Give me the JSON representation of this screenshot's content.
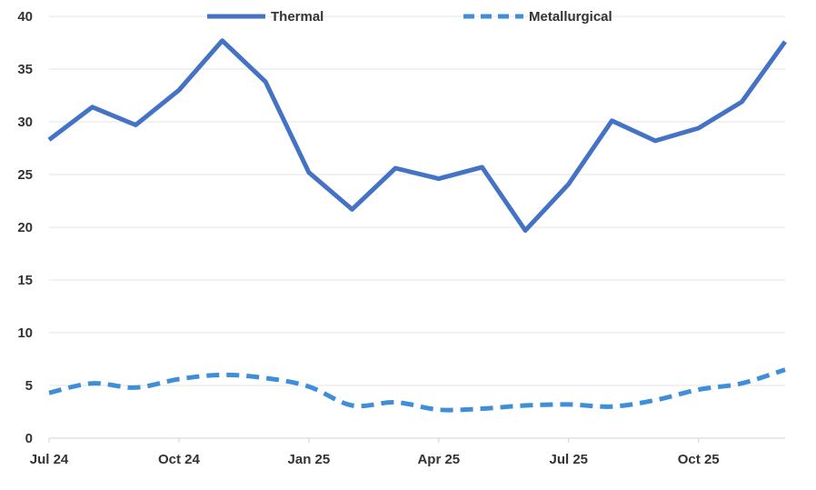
{
  "chart_data": {
    "type": "line",
    "title": "",
    "xlabel": "",
    "ylabel": "",
    "ylim": [
      0,
      40
    ],
    "yticks": [
      0,
      5,
      10,
      15,
      20,
      25,
      30,
      35,
      40
    ],
    "grid": true,
    "legend_position": "top",
    "x": [
      "Jul 24",
      "Aug 24",
      "Sep 24",
      "Oct 24",
      "Nov 24",
      "Dec 24",
      "Jan 25",
      "Feb 25",
      "Mar 25",
      "Apr 25",
      "May 25",
      "Jun 25",
      "Jul 25",
      "Aug 25",
      "Sep 25",
      "Oct 25",
      "Nov 25",
      "Dec 25"
    ],
    "xtick_labels": [
      "Jul 24",
      "Oct 24",
      "Jan 25",
      "Apr 25",
      "Jul 25",
      "Oct 25"
    ],
    "series": [
      {
        "name": "Thermal",
        "style": "solid",
        "color": "#4472C4",
        "values": [
          28.3,
          31.4,
          29.7,
          33.0,
          37.7,
          33.8,
          25.2,
          21.7,
          25.6,
          24.6,
          25.7,
          19.7,
          24.1,
          30.1,
          28.2,
          29.4,
          31.9,
          37.6
        ]
      },
      {
        "name": "Metallurgical",
        "style": "dashed",
        "color": "#3E8ED8",
        "values": [
          4.3,
          5.2,
          4.8,
          5.6,
          6.0,
          5.7,
          4.9,
          3.1,
          3.4,
          2.7,
          2.8,
          3.1,
          3.2,
          3.0,
          3.6,
          4.6,
          5.2,
          6.5
        ]
      }
    ]
  }
}
